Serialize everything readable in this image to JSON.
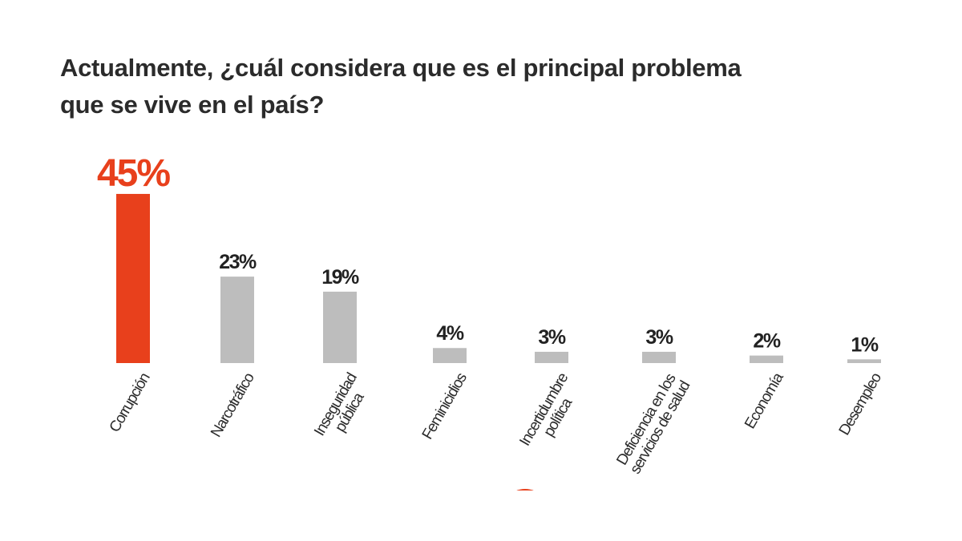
{
  "chart_data": {
    "type": "bar",
    "title": "Actualmente, ¿cuál considera que es el principal problema\nque se vive en el país?",
    "categories": [
      "Corrupción",
      "Narcotráfico",
      "Inseguridad\npública",
      "Feminicidios",
      "Incertidumbre\npolítica",
      "Deficiencia en los\nservicios de salud",
      "Economía",
      "Desempleo"
    ],
    "values": [
      45,
      23,
      19,
      4,
      3,
      3,
      2,
      1
    ],
    "value_labels": [
      "45%",
      "23%",
      "19%",
      "4%",
      "3%",
      "3%",
      "2%",
      "1%"
    ],
    "colors": [
      "#e8401c",
      "#bdbdbd",
      "#bdbdbd",
      "#bdbdbd",
      "#bdbdbd",
      "#bdbdbd",
      "#bdbdbd",
      "#bdbdbd"
    ],
    "value_label_colors": [
      "#e8401c",
      "#222222",
      "#222222",
      "#222222",
      "#222222",
      "#222222",
      "#222222",
      "#222222"
    ]
  }
}
